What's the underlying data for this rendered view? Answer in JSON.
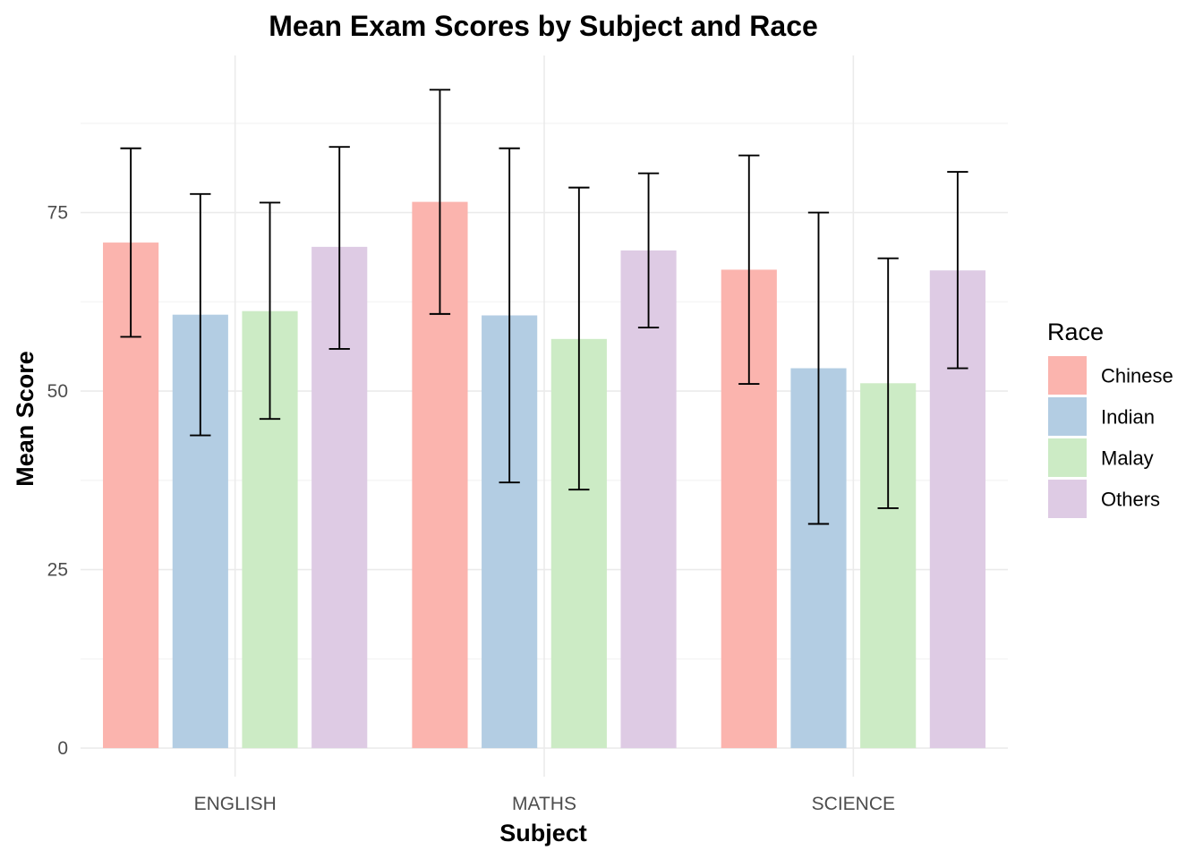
{
  "chart_data": {
    "type": "bar",
    "title": "Mean Exam Scores by Subject and Race",
    "xlabel": "Subject",
    "ylabel": "Mean Score",
    "categories": [
      "ENGLISH",
      "MATHS",
      "SCIENCE"
    ],
    "ylim": [
      -4,
      97
    ],
    "yticks": [
      0,
      25,
      50,
      75
    ],
    "grid": true,
    "legend": {
      "title": "Race",
      "position": "right"
    },
    "error_bars": true,
    "series": [
      {
        "name": "Chinese",
        "color": "#FBB4AE",
        "values": [
          70.8,
          76.5,
          67.0
        ],
        "lower": [
          57.6,
          60.8,
          51.0
        ],
        "upper": [
          84.0,
          92.2,
          83.0
        ]
      },
      {
        "name": "Indian",
        "color": "#B3CDE3",
        "values": [
          60.7,
          60.6,
          53.2
        ],
        "lower": [
          43.8,
          37.2,
          31.4
        ],
        "upper": [
          77.6,
          84.0,
          75.0
        ]
      },
      {
        "name": "Malay",
        "color": "#CCEBC5",
        "values": [
          61.2,
          57.3,
          51.1
        ],
        "lower": [
          46.1,
          36.2,
          33.6
        ],
        "upper": [
          76.4,
          78.5,
          68.6
        ]
      },
      {
        "name": "Others",
        "color": "#DECBE4",
        "values": [
          70.2,
          69.7,
          66.9
        ],
        "lower": [
          55.9,
          58.9,
          53.2
        ],
        "upper": [
          84.2,
          80.5,
          80.7
        ]
      }
    ]
  }
}
